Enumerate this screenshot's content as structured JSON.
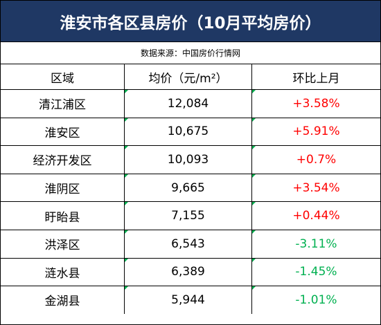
{
  "title": "淮安市各区县房价（10月平均房价）",
  "source": "数据来源：中国房价行情网",
  "headers": {
    "region": "区域",
    "price": "均价（元/m²）",
    "change": "环比上月"
  },
  "rows": [
    {
      "region": "清江浦区",
      "price": "12,084",
      "change": "+3.58%"
    },
    {
      "region": "淮安区",
      "price": "10,675",
      "change": "+5.91%"
    },
    {
      "region": "经济开发区",
      "price": "10,093",
      "change": "+0.7%"
    },
    {
      "region": "淮阴区",
      "price": "9,665",
      "change": "+3.54%"
    },
    {
      "region": "盱眙县",
      "price": "7,155",
      "change": "+0.44%"
    },
    {
      "region": "洪泽区",
      "price": "6,543",
      "change": "-3.11%"
    },
    {
      "region": "涟水县",
      "price": "6,389",
      "change": "-1.45%"
    },
    {
      "region": "金湖县",
      "price": "5,944",
      "change": "-1.01%"
    }
  ],
  "colors": {
    "header_bg": "#1f3864",
    "increase": "#ff0000",
    "decrease": "#00b050"
  }
}
